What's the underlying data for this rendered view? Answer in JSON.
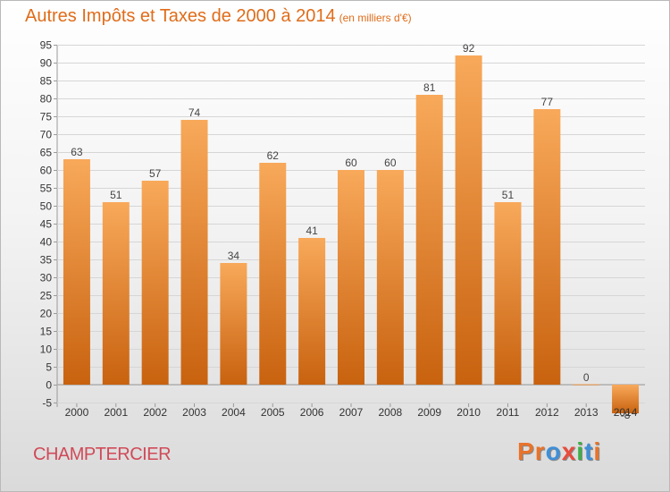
{
  "header": {
    "title": "Autres Impôts et Taxes de 2000 à 2014",
    "unit": "(en milliers d'€)"
  },
  "footer": {
    "city": "CHAMPTERCIER",
    "logo_letters": [
      "P",
      "r",
      "o",
      "x",
      "i",
      "t",
      "i"
    ]
  },
  "colors": {
    "title": "#e06c1a",
    "city": "#d04a58",
    "bar_light": "#f8a95a",
    "bar_dark": "#c8620f",
    "logo": [
      "#e8732a",
      "#e8732a",
      "#3f8fd8",
      "#e94b3c",
      "#3fae49",
      "#3f8fd8",
      "#e8732a"
    ]
  },
  "chart_data": {
    "type": "bar",
    "title": "Autres Impôts et Taxes de 2000 à 2014",
    "subtitle": "(en milliers d'€)",
    "categories": [
      "2000",
      "2001",
      "2002",
      "2003",
      "2004",
      "2005",
      "2006",
      "2007",
      "2008",
      "2009",
      "2010",
      "2011",
      "2012",
      "2013",
      "2014"
    ],
    "values": [
      63,
      51,
      57,
      74,
      34,
      62,
      41,
      60,
      60,
      81,
      92,
      51,
      77,
      0,
      -8
    ],
    "ylim": [
      -5,
      95
    ],
    "yticks": [
      -5,
      0,
      5,
      10,
      15,
      20,
      25,
      30,
      35,
      40,
      45,
      50,
      55,
      60,
      65,
      70,
      75,
      80,
      85,
      90,
      95
    ],
    "grid": true,
    "legend": "none"
  }
}
